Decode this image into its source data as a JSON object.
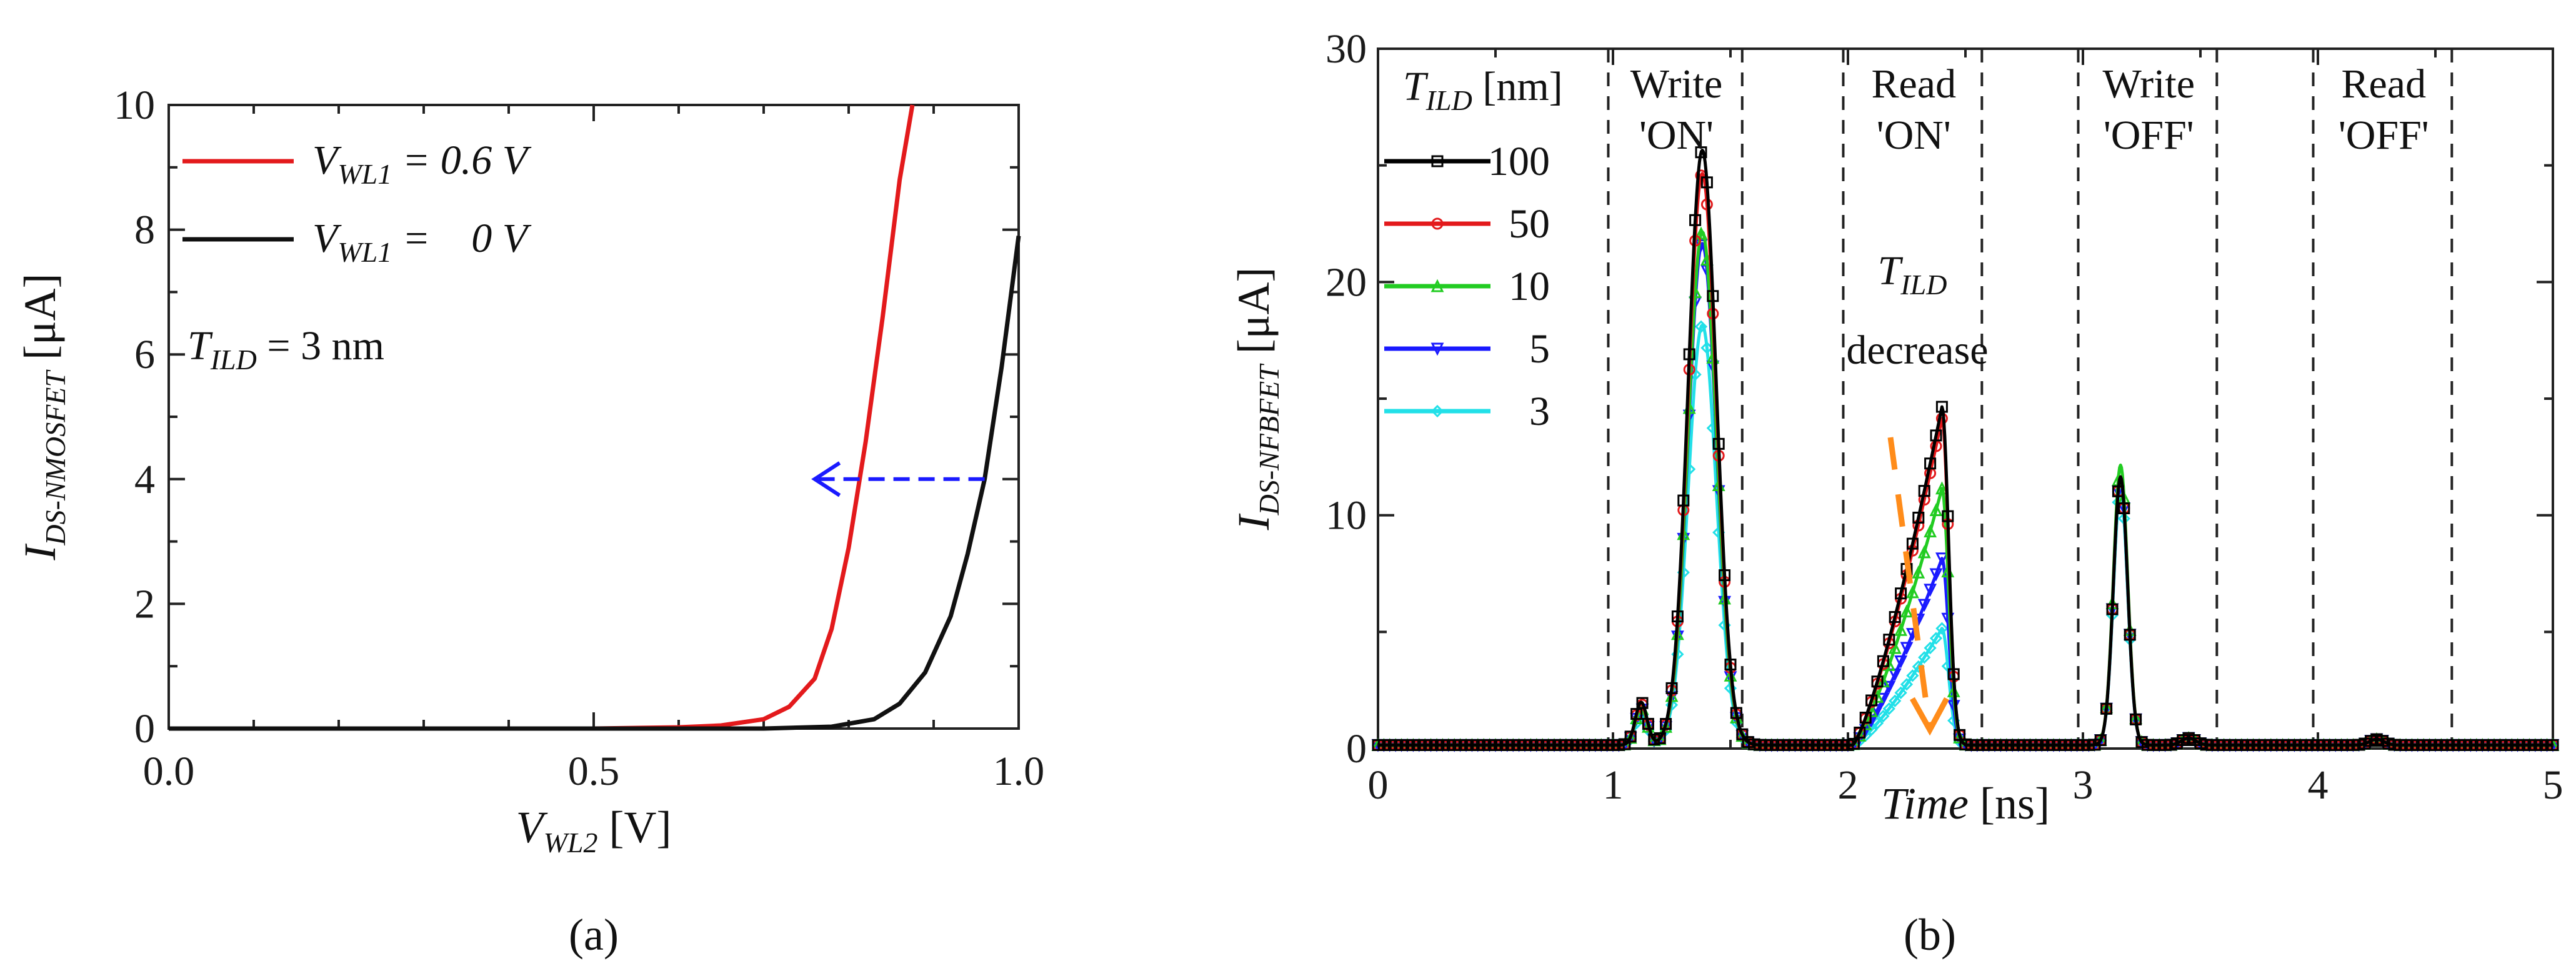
{
  "chart_data": [
    {
      "panel_label": "(a)",
      "type": "line",
      "xlabel_main": "V",
      "xlabel_sub": "WL2",
      "xlabel_unit": " [V]",
      "ylabel_main": "I",
      "ylabel_sub": "DS-NMOSFET",
      "ylabel_unit": " [μA]",
      "xlim": [
        0.0,
        1.0
      ],
      "ylim": [
        0,
        10
      ],
      "xticks": [
        "0.0",
        "0.5",
        "1.0"
      ],
      "yticks": [
        "0",
        "2",
        "4",
        "6",
        "8",
        "10"
      ],
      "annotation_main": "T",
      "annotation_sub": "ILD",
      "annotation_rest": " = 3 nm",
      "series": [
        {
          "name_main": "V",
          "name_sub": "WL1",
          "name_rest": " = 0.6 V",
          "color": "#e31a1c",
          "x": [
            0.0,
            0.5,
            0.6,
            0.65,
            0.7,
            0.73,
            0.76,
            0.78,
            0.8,
            0.82,
            0.84,
            0.86,
            0.875
          ],
          "y": [
            0.0,
            0.0,
            0.02,
            0.05,
            0.15,
            0.35,
            0.8,
            1.6,
            2.9,
            4.6,
            6.6,
            8.8,
            10.0
          ]
        },
        {
          "name_main": "V",
          "name_sub": "WL1",
          "name_rest": " =    0 V",
          "color": "#111111",
          "x": [
            0.0,
            0.7,
            0.78,
            0.83,
            0.86,
            0.89,
            0.92,
            0.94,
            0.96,
            0.98,
            1.0
          ],
          "y": [
            0.0,
            0.0,
            0.03,
            0.15,
            0.4,
            0.9,
            1.8,
            2.8,
            4.0,
            5.8,
            7.9
          ]
        }
      ],
      "arrow": {
        "from_x": 0.96,
        "to_x": 0.76,
        "y": 4.0,
        "color": "#1a1aff"
      }
    },
    {
      "panel_label": "(b)",
      "type": "line",
      "xlabel_main": "Time",
      "xlabel_unit": " [ns]",
      "ylabel_main": "I",
      "ylabel_sub": "DS-NFBFET",
      "ylabel_unit": " [μA]",
      "xlim": [
        0,
        5
      ],
      "ylim": [
        0,
        30
      ],
      "xticks": [
        "0",
        "1",
        "2",
        "3",
        "4",
        "5"
      ],
      "yticks": [
        "0",
        "10",
        "20",
        "30"
      ],
      "legend_title_main": "T",
      "legend_title_sub": "ILD",
      "legend_title_unit": " [nm]",
      "phase_boundaries": [
        0.98,
        1.55,
        1.98,
        2.57,
        2.98,
        3.57,
        3.98,
        4.57
      ],
      "phases": [
        {
          "line1": "Write",
          "line2": "'ON'",
          "x": 1.27
        },
        {
          "line1": "Read",
          "line2": "'ON'",
          "x": 2.28
        },
        {
          "line1": "Write",
          "line2": "'OFF'",
          "x": 3.28
        },
        {
          "line1": "Read",
          "line2": "'OFF'",
          "x": 4.28
        }
      ],
      "annotation_main": "T",
      "annotation_sub": "ILD",
      "annotation_rest": "decrease",
      "series": [
        {
          "name": "100",
          "color": "#000000",
          "marker": "square",
          "peak_write_on": 25.5,
          "peak_read_on": 14.5,
          "peak_write_off": 11.5
        },
        {
          "name": "50",
          "color": "#e31a1c",
          "marker": "circle",
          "peak_write_on": 24.5,
          "peak_read_on": 14.0,
          "peak_write_off": 11.5
        },
        {
          "name": "10",
          "color": "#22cc22",
          "marker": "triangle",
          "peak_write_on": 22.0,
          "peak_read_on": 11.0,
          "peak_write_off": 12.0
        },
        {
          "name": "5",
          "color": "#1a1aff",
          "marker": "tri-down",
          "peak_write_on": 21.5,
          "peak_read_on": 8.0,
          "peak_write_off": 11.5
        },
        {
          "name": "3",
          "color": "#22e0e8",
          "marker": "diamond",
          "peak_write_on": 18.0,
          "peak_read_on": 5.0,
          "peak_write_off": 11.0
        }
      ]
    }
  ]
}
